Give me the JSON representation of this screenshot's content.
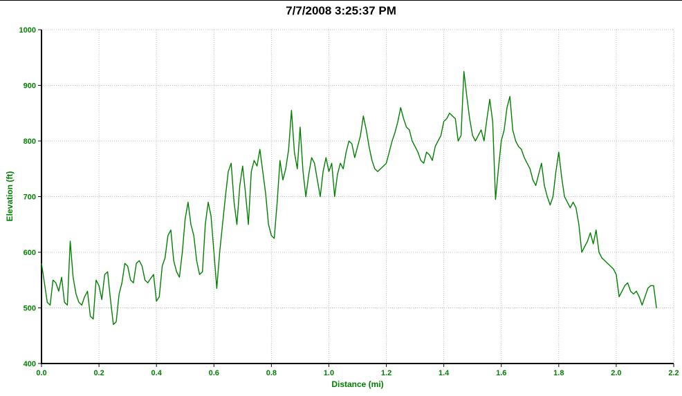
{
  "chart_data": {
    "type": "line",
    "title": "7/7/2008 3:25:37 PM",
    "xlabel": "Distance (mi)",
    "ylabel": "Elevation (ft)",
    "xlim": [
      0.0,
      2.2
    ],
    "ylim": [
      400,
      1000
    ],
    "x_ticks": [
      "0.0",
      "0.2",
      "0.4",
      "0.6",
      "0.8",
      "1.0",
      "1.2",
      "1.4",
      "1.6",
      "1.8",
      "2.0",
      "2.2"
    ],
    "y_ticks": [
      "400",
      "500",
      "600",
      "700",
      "800",
      "900",
      "1000"
    ],
    "grid": true,
    "legend": "none",
    "line_color": "#008000",
    "label_color": "#008000",
    "grid_color": "#bdbdbd",
    "axis_color": "#000000",
    "series": [
      {
        "name": "Elevation",
        "points": [
          [
            0.0,
            580
          ],
          [
            0.01,
            545
          ],
          [
            0.02,
            510
          ],
          [
            0.03,
            505
          ],
          [
            0.04,
            550
          ],
          [
            0.05,
            545
          ],
          [
            0.06,
            530
          ],
          [
            0.07,
            555
          ],
          [
            0.08,
            510
          ],
          [
            0.09,
            505
          ],
          [
            0.1,
            620
          ],
          [
            0.11,
            555
          ],
          [
            0.12,
            525
          ],
          [
            0.13,
            510
          ],
          [
            0.14,
            505
          ],
          [
            0.15,
            520
          ],
          [
            0.16,
            530
          ],
          [
            0.17,
            485
          ],
          [
            0.18,
            480
          ],
          [
            0.19,
            550
          ],
          [
            0.2,
            540
          ],
          [
            0.21,
            515
          ],
          [
            0.22,
            560
          ],
          [
            0.23,
            565
          ],
          [
            0.24,
            515
          ],
          [
            0.25,
            470
          ],
          [
            0.26,
            475
          ],
          [
            0.27,
            525
          ],
          [
            0.28,
            545
          ],
          [
            0.29,
            580
          ],
          [
            0.3,
            575
          ],
          [
            0.31,
            550
          ],
          [
            0.32,
            545
          ],
          [
            0.33,
            580
          ],
          [
            0.34,
            585
          ],
          [
            0.35,
            575
          ],
          [
            0.36,
            550
          ],
          [
            0.37,
            545
          ],
          [
            0.38,
            553
          ],
          [
            0.39,
            560
          ],
          [
            0.4,
            512
          ],
          [
            0.41,
            520
          ],
          [
            0.42,
            575
          ],
          [
            0.43,
            590
          ],
          [
            0.44,
            630
          ],
          [
            0.45,
            640
          ],
          [
            0.46,
            585
          ],
          [
            0.47,
            565
          ],
          [
            0.48,
            555
          ],
          [
            0.49,
            600
          ],
          [
            0.5,
            660
          ],
          [
            0.51,
            690
          ],
          [
            0.52,
            650
          ],
          [
            0.53,
            630
          ],
          [
            0.54,
            585
          ],
          [
            0.55,
            560
          ],
          [
            0.56,
            565
          ],
          [
            0.57,
            650
          ],
          [
            0.58,
            690
          ],
          [
            0.59,
            665
          ],
          [
            0.6,
            600
          ],
          [
            0.61,
            535
          ],
          [
            0.62,
            600
          ],
          [
            0.63,
            650
          ],
          [
            0.64,
            700
          ],
          [
            0.65,
            745
          ],
          [
            0.66,
            760
          ],
          [
            0.67,
            690
          ],
          [
            0.68,
            650
          ],
          [
            0.69,
            720
          ],
          [
            0.7,
            755
          ],
          [
            0.71,
            705
          ],
          [
            0.72,
            650
          ],
          [
            0.73,
            745
          ],
          [
            0.74,
            765
          ],
          [
            0.75,
            755
          ],
          [
            0.76,
            785
          ],
          [
            0.77,
            745
          ],
          [
            0.78,
            705
          ],
          [
            0.79,
            650
          ],
          [
            0.8,
            630
          ],
          [
            0.81,
            625
          ],
          [
            0.82,
            690
          ],
          [
            0.83,
            765
          ],
          [
            0.84,
            730
          ],
          [
            0.85,
            750
          ],
          [
            0.86,
            785
          ],
          [
            0.87,
            855
          ],
          [
            0.88,
            780
          ],
          [
            0.89,
            750
          ],
          [
            0.9,
            825
          ],
          [
            0.91,
            745
          ],
          [
            0.92,
            700
          ],
          [
            0.93,
            740
          ],
          [
            0.94,
            770
          ],
          [
            0.95,
            760
          ],
          [
            0.96,
            730
          ],
          [
            0.97,
            700
          ],
          [
            0.98,
            745
          ],
          [
            0.99,
            770
          ],
          [
            1.0,
            745
          ],
          [
            1.01,
            760
          ],
          [
            1.02,
            700
          ],
          [
            1.03,
            740
          ],
          [
            1.04,
            760
          ],
          [
            1.05,
            750
          ],
          [
            1.06,
            780
          ],
          [
            1.07,
            800
          ],
          [
            1.08,
            795
          ],
          [
            1.09,
            770
          ],
          [
            1.1,
            790
          ],
          [
            1.11,
            810
          ],
          [
            1.12,
            845
          ],
          [
            1.13,
            820
          ],
          [
            1.14,
            790
          ],
          [
            1.15,
            765
          ],
          [
            1.16,
            750
          ],
          [
            1.17,
            745
          ],
          [
            1.18,
            750
          ],
          [
            1.19,
            755
          ],
          [
            1.2,
            760
          ],
          [
            1.21,
            780
          ],
          [
            1.22,
            800
          ],
          [
            1.23,
            815
          ],
          [
            1.24,
            835
          ],
          [
            1.25,
            860
          ],
          [
            1.26,
            840
          ],
          [
            1.27,
            825
          ],
          [
            1.28,
            820
          ],
          [
            1.29,
            800
          ],
          [
            1.3,
            790
          ],
          [
            1.31,
            780
          ],
          [
            1.32,
            765
          ],
          [
            1.33,
            760
          ],
          [
            1.34,
            780
          ],
          [
            1.35,
            775
          ],
          [
            1.36,
            765
          ],
          [
            1.37,
            790
          ],
          [
            1.38,
            800
          ],
          [
            1.39,
            810
          ],
          [
            1.4,
            835
          ],
          [
            1.41,
            840
          ],
          [
            1.42,
            850
          ],
          [
            1.43,
            845
          ],
          [
            1.44,
            840
          ],
          [
            1.45,
            800
          ],
          [
            1.46,
            810
          ],
          [
            1.47,
            925
          ],
          [
            1.48,
            880
          ],
          [
            1.49,
            840
          ],
          [
            1.5,
            810
          ],
          [
            1.51,
            800
          ],
          [
            1.52,
            810
          ],
          [
            1.53,
            820
          ],
          [
            1.54,
            800
          ],
          [
            1.55,
            840
          ],
          [
            1.56,
            875
          ],
          [
            1.57,
            835
          ],
          [
            1.58,
            695
          ],
          [
            1.59,
            750
          ],
          [
            1.6,
            800
          ],
          [
            1.61,
            820
          ],
          [
            1.62,
            860
          ],
          [
            1.63,
            880
          ],
          [
            1.64,
            820
          ],
          [
            1.65,
            800
          ],
          [
            1.66,
            790
          ],
          [
            1.67,
            785
          ],
          [
            1.68,
            770
          ],
          [
            1.69,
            760
          ],
          [
            1.7,
            750
          ],
          [
            1.71,
            730
          ],
          [
            1.72,
            720
          ],
          [
            1.73,
            740
          ],
          [
            1.74,
            760
          ],
          [
            1.75,
            720
          ],
          [
            1.76,
            700
          ],
          [
            1.77,
            685
          ],
          [
            1.78,
            700
          ],
          [
            1.79,
            745
          ],
          [
            1.8,
            780
          ],
          [
            1.81,
            735
          ],
          [
            1.82,
            700
          ],
          [
            1.83,
            690
          ],
          [
            1.84,
            680
          ],
          [
            1.85,
            690
          ],
          [
            1.86,
            680
          ],
          [
            1.87,
            650
          ],
          [
            1.88,
            600
          ],
          [
            1.89,
            610
          ],
          [
            1.9,
            620
          ],
          [
            1.91,
            635
          ],
          [
            1.92,
            615
          ],
          [
            1.93,
            640
          ],
          [
            1.94,
            600
          ],
          [
            1.95,
            590
          ],
          [
            1.96,
            585
          ],
          [
            1.97,
            580
          ],
          [
            1.98,
            575
          ],
          [
            1.99,
            570
          ],
          [
            2.0,
            560
          ],
          [
            2.01,
            520
          ],
          [
            2.02,
            530
          ],
          [
            2.03,
            540
          ],
          [
            2.04,
            545
          ],
          [
            2.05,
            530
          ],
          [
            2.06,
            525
          ],
          [
            2.07,
            530
          ],
          [
            2.08,
            520
          ],
          [
            2.09,
            505
          ],
          [
            2.1,
            520
          ],
          [
            2.11,
            535
          ],
          [
            2.12,
            540
          ],
          [
            2.13,
            540
          ],
          [
            2.14,
            500
          ]
        ]
      }
    ]
  }
}
